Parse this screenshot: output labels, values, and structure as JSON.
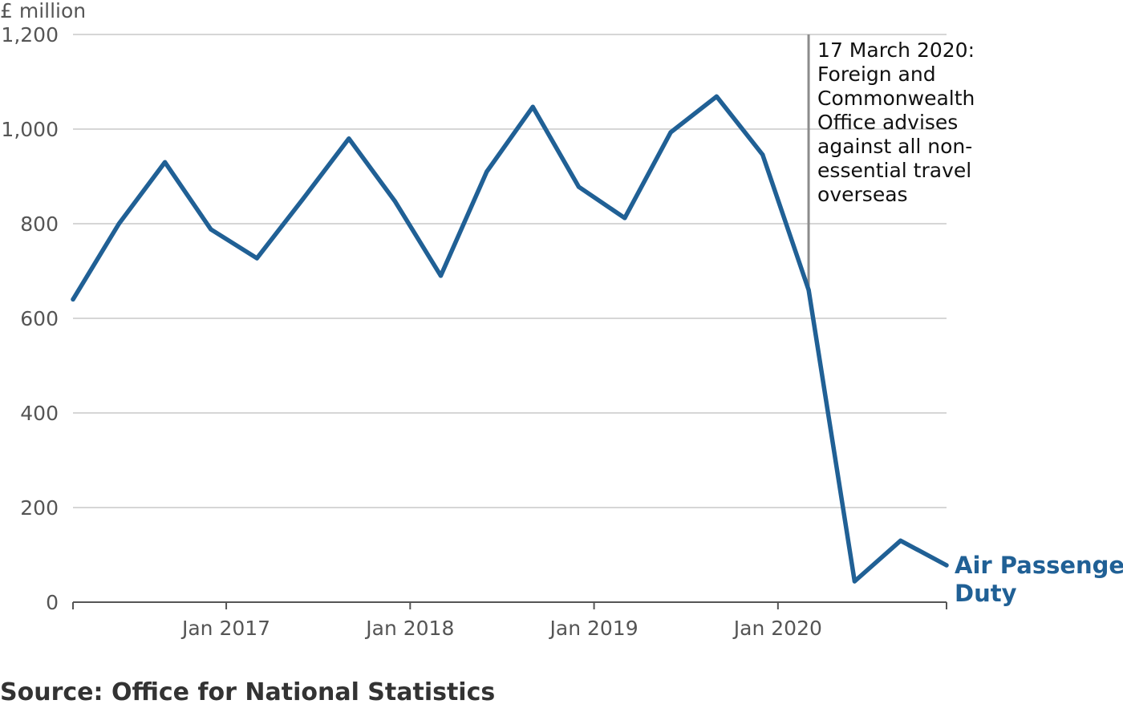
{
  "chart_data": {
    "type": "line",
    "y_unit": "£ million",
    "ylim": [
      0,
      1200
    ],
    "y_ticks": [
      0,
      200,
      400,
      600,
      800,
      1000,
      1200
    ],
    "y_tick_labels": [
      "0",
      "200",
      "400",
      "600",
      "800",
      "1,000",
      "1,200"
    ],
    "x_range": [
      "2016-03",
      "2020-12"
    ],
    "x_ticks": [
      "2017-01",
      "2018-01",
      "2019-01",
      "2020-01"
    ],
    "x_tick_labels": [
      "Jan 2017",
      "Jan 2018",
      "Jan 2019",
      "Jan 2020"
    ],
    "grid": true,
    "series": [
      {
        "name": "Air Passenger Duty",
        "color": "#206095",
        "label_lines": [
          "Air Passenger",
          "Duty"
        ],
        "points": [
          {
            "x": "2016-03",
            "y": 640
          },
          {
            "x": "2016-06",
            "y": 800
          },
          {
            "x": "2016-09",
            "y": 930
          },
          {
            "x": "2016-12",
            "y": 788
          },
          {
            "x": "2017-03",
            "y": 727
          },
          {
            "x": "2017-06",
            "y": 852
          },
          {
            "x": "2017-09",
            "y": 980
          },
          {
            "x": "2017-12",
            "y": 848
          },
          {
            "x": "2018-03",
            "y": 690
          },
          {
            "x": "2018-06",
            "y": 910
          },
          {
            "x": "2018-09",
            "y": 1047
          },
          {
            "x": "2018-12",
            "y": 878
          },
          {
            "x": "2019-03",
            "y": 812
          },
          {
            "x": "2019-06",
            "y": 993
          },
          {
            "x": "2019-09",
            "y": 1069
          },
          {
            "x": "2019-12",
            "y": 946
          },
          {
            "x": "2020-03",
            "y": 660
          },
          {
            "x": "2020-06",
            "y": 44
          },
          {
            "x": "2020-09",
            "y": 130
          },
          {
            "x": "2020-12",
            "y": 78
          }
        ]
      }
    ],
    "annotation": {
      "x": "2020-03",
      "text_lines": [
        "17 March 2020:",
        "Foreign and",
        "Commonwealth",
        "Office advises",
        "against all non-",
        "essential travel",
        "overseas"
      ]
    },
    "source": "Source: Office for National Statistics"
  }
}
